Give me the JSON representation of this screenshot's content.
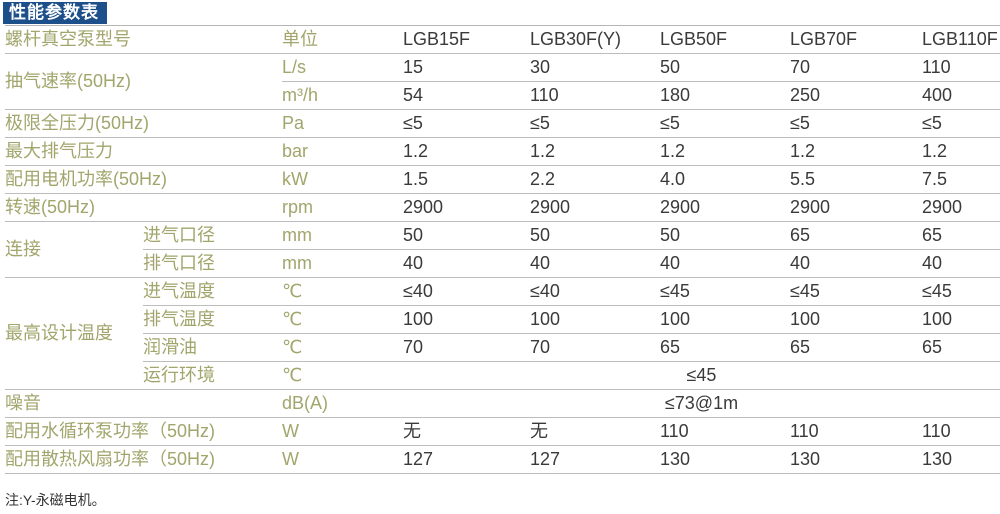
{
  "title": "性能参数表",
  "header": {
    "label": "螺杆真空泵型号",
    "unit": "单位",
    "models": [
      "LGB15F",
      "LGB30F(Y)",
      "LGB50F",
      "LGB70F",
      "LGB110F"
    ]
  },
  "rows": [
    {
      "group": "抽气速率(50Hz)",
      "group_span": 2,
      "unit": "L/s",
      "values": [
        "15",
        "30",
        "50",
        "70",
        "110"
      ]
    },
    {
      "unit": "m³/h",
      "values": [
        "54",
        "110",
        "180",
        "250",
        "400"
      ]
    },
    {
      "group": "极限全压力(50Hz)",
      "unit": "Pa",
      "values": [
        "≤5",
        "≤5",
        "≤5",
        "≤5",
        "≤5"
      ]
    },
    {
      "group": "最大排气压力",
      "unit": "bar",
      "values": [
        "1.2",
        "1.2",
        "1.2",
        "1.2",
        "1.2"
      ]
    },
    {
      "group": "配用电机功率(50Hz)",
      "unit": "kW",
      "values": [
        "1.5",
        "2.2",
        "4.0",
        "5.5",
        "7.5"
      ]
    },
    {
      "group": "转速(50Hz)",
      "unit": "rpm",
      "values": [
        "2900",
        "2900",
        "2900",
        "2900",
        "2900"
      ]
    },
    {
      "group": "连接",
      "group_span": 2,
      "sub": "进气口径",
      "unit": "mm",
      "values": [
        "50",
        "50",
        "50",
        "65",
        "65"
      ]
    },
    {
      "sub": "排气口径",
      "unit": "mm",
      "values": [
        "40",
        "40",
        "40",
        "40",
        "40"
      ]
    },
    {
      "group": "最高设计温度",
      "group_span": 4,
      "sub": "进气温度",
      "unit": "℃",
      "values": [
        "≤40",
        "≤40",
        "≤45",
        "≤45",
        "≤45"
      ]
    },
    {
      "sub": "排气温度",
      "unit": "℃",
      "values": [
        "100",
        "100",
        "100",
        "100",
        "100"
      ]
    },
    {
      "sub": "润滑油",
      "unit": "℃",
      "values": [
        "70",
        "70",
        "65",
        "65",
        "65"
      ]
    },
    {
      "sub": "运行环境",
      "unit": "℃",
      "merged": "≤45"
    },
    {
      "group": "噪音",
      "unit": "dB(A)",
      "merged": "≤73@1m"
    },
    {
      "group": "配用水循环泵功率（50Hz)",
      "unit": "W",
      "values": [
        "无",
        "无",
        "110",
        "110",
        "110"
      ]
    },
    {
      "group": "配用散热风扇功率（50Hz)",
      "unit": "W",
      "values": [
        "127",
        "127",
        "130",
        "130",
        "130"
      ]
    }
  ],
  "note": "注:Y-永磁电机。",
  "colors": {
    "title_bg": "#1d4f8a",
    "label": "#a2a66c",
    "value": "#3a3a3a"
  }
}
